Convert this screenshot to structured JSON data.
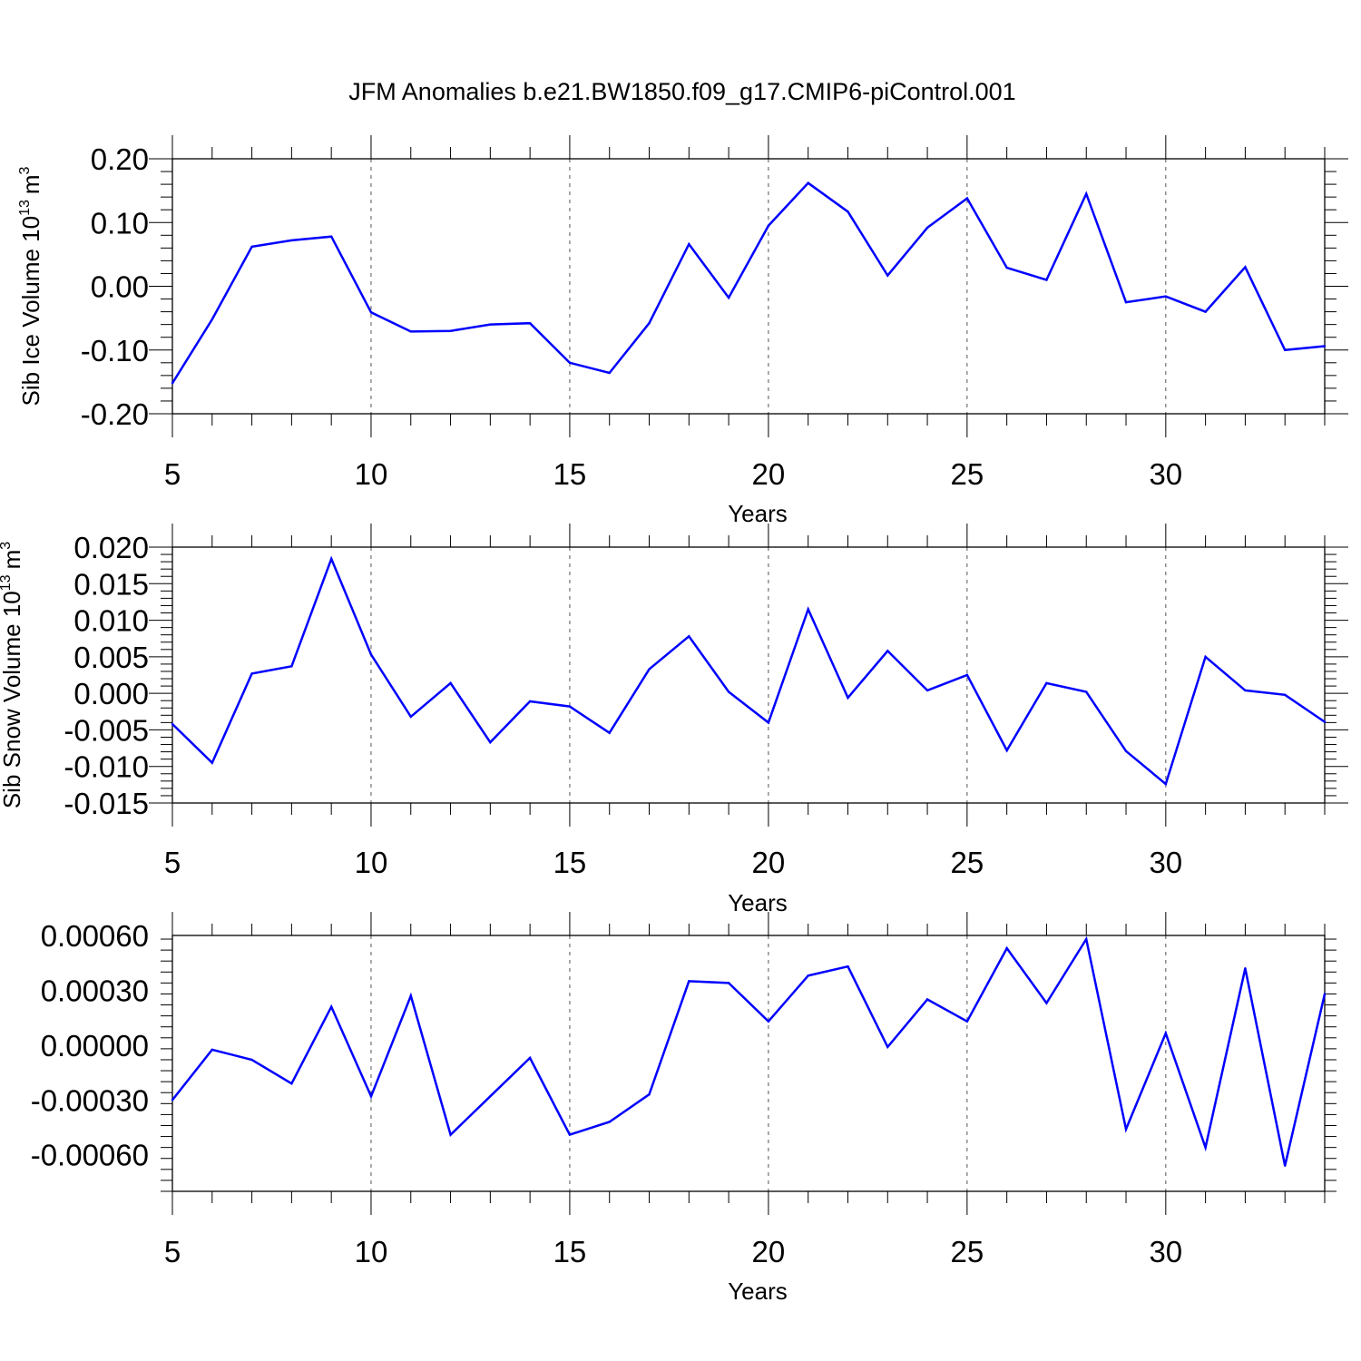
{
  "title": "JFM Anomalies b.e21.BW1850.f09_g17.CMIP6-piControl.001",
  "line_color": "#0000ff",
  "chart_data": [
    {
      "type": "line",
      "xlabel": "Years",
      "ylabel": "Sib Ice Volume 10",
      "ylabel_sup": "13",
      "ylabel_unit": "m",
      "ylabel_unit_sup": "3",
      "xlim": [
        5,
        34
      ],
      "ylim": [
        -0.2,
        0.2
      ],
      "xticks": [
        5,
        10,
        15,
        20,
        25,
        30
      ],
      "yticks": [
        -0.2,
        -0.1,
        0.0,
        0.1,
        0.2
      ],
      "ytick_labels": [
        "-0.20",
        "-0.10",
        "0.00",
        "0.10",
        "0.20"
      ],
      "grid_x": [
        10,
        15,
        20,
        25,
        30
      ],
      "x": [
        5,
        6,
        7,
        8,
        9,
        10,
        11,
        12,
        13,
        14,
        15,
        16,
        17,
        18,
        19,
        20,
        21,
        22,
        23,
        24,
        25,
        26,
        27,
        28,
        29,
        30,
        31,
        32,
        33,
        34
      ],
      "y": [
        -0.152,
        -0.052,
        0.062,
        0.072,
        0.078,
        -0.041,
        -0.071,
        -0.07,
        -0.06,
        -0.058,
        -0.12,
        -0.136,
        -0.058,
        0.066,
        -0.018,
        0.095,
        0.162,
        0.117,
        0.017,
        0.092,
        0.138,
        0.029,
        0.01,
        0.145,
        -0.025,
        -0.016,
        -0.04,
        0.03,
        -0.1,
        -0.094
      ]
    },
    {
      "type": "line",
      "xlabel": "Years",
      "ylabel": "Sib Snow Volume 10",
      "ylabel_sup": "13",
      "ylabel_unit": "m",
      "ylabel_unit_sup": "3",
      "xlim": [
        5,
        34
      ],
      "ylim": [
        -0.015,
        0.02
      ],
      "xticks": [
        5,
        10,
        15,
        20,
        25,
        30
      ],
      "yticks": [
        -0.015,
        -0.01,
        -0.005,
        0.0,
        0.005,
        0.01,
        0.015,
        0.02
      ],
      "ytick_labels": [
        "-0.015",
        "-0.010",
        "-0.005",
        "0.000",
        "0.005",
        "0.010",
        "0.015",
        "0.020"
      ],
      "grid_x": [
        10,
        15,
        20,
        25,
        30
      ],
      "x": [
        5,
        6,
        7,
        8,
        9,
        10,
        11,
        12,
        13,
        14,
        15,
        16,
        17,
        18,
        19,
        20,
        21,
        22,
        23,
        24,
        25,
        26,
        27,
        28,
        29,
        30,
        31,
        32,
        33,
        34
      ],
      "y": [
        -0.0042,
        -0.0095,
        0.0027,
        0.0037,
        0.0184,
        0.0053,
        -0.0032,
        0.0014,
        -0.0067,
        -0.0011,
        -0.0018,
        -0.0054,
        0.0033,
        0.0078,
        0.0002,
        -0.004,
        0.0115,
        -0.0006,
        0.0058,
        0.0004,
        0.0025,
        -0.0078,
        0.0014,
        0.0002,
        -0.0079,
        -0.0124,
        0.005,
        0.0004,
        -0.0002,
        -0.0039
      ]
    },
    {
      "type": "line",
      "xlabel": "Years",
      "ylabel": "",
      "xlim": [
        5,
        34
      ],
      "ylim": [
        -0.0008,
        0.0006
      ],
      "xticks": [
        5,
        10,
        15,
        20,
        25,
        30
      ],
      "yticks": [
        -0.0006,
        -0.0003,
        0.0,
        0.0003,
        0.0006
      ],
      "ytick_labels": [
        "-0.00060",
        "-0.00030",
        "0.00000",
        "0.00030",
        "0.00060"
      ],
      "grid_x": [
        10,
        15,
        20,
        25,
        30
      ],
      "x": [
        5,
        6,
        7,
        8,
        9,
        10,
        11,
        12,
        13,
        14,
        15,
        16,
        17,
        18,
        19,
        20,
        21,
        22,
        23,
        24,
        25,
        26,
        27,
        28,
        29,
        30,
        31,
        32,
        33,
        34
      ],
      "y": [
        -0.0003,
        -2.5e-05,
        -8e-05,
        -0.00021,
        0.00021,
        -0.00028,
        0.00027,
        -0.00049,
        -0.00028,
        -7e-05,
        -0.00049,
        -0.00042,
        -0.00027,
        0.00035,
        0.00034,
        0.00013,
        0.00038,
        0.00043,
        -1e-05,
        0.00025,
        0.00013,
        0.00053,
        0.00023,
        0.00058,
        -0.00046,
        6.5e-05,
        -0.00056,
        0.00042,
        -0.00066,
        0.00028
      ]
    }
  ]
}
